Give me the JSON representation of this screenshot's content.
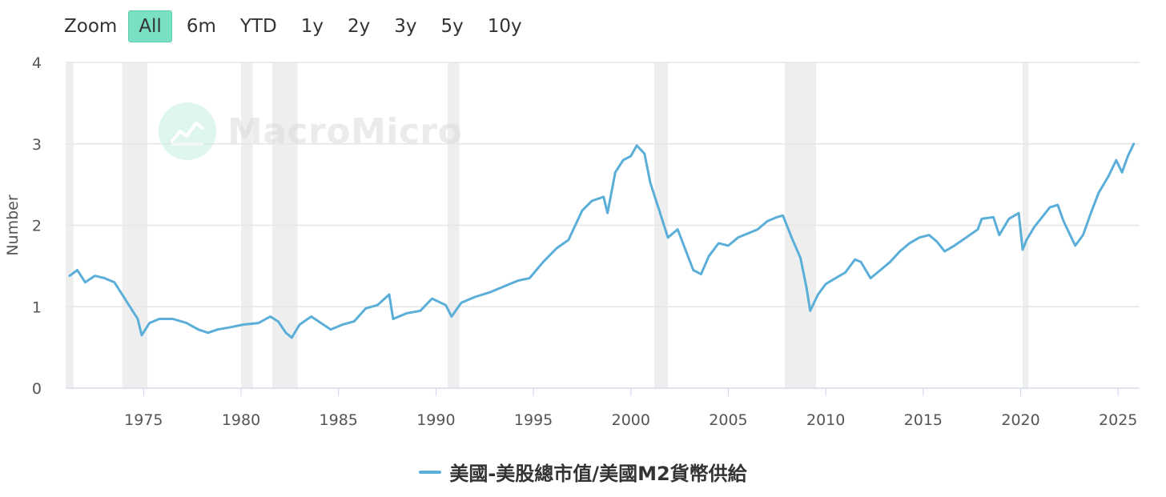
{
  "zoom": {
    "label": "Zoom",
    "options": [
      "All",
      "6m",
      "YTD",
      "1y",
      "2y",
      "3y",
      "5y",
      "10y"
    ],
    "active": "All"
  },
  "watermark": {
    "text": "MacroMicro",
    "icon": "chart-trend-icon"
  },
  "colors": {
    "series": "#5aaed8",
    "recession": "#eeeeee",
    "grid": "#e6e6e6",
    "accent": "#7ae0c3"
  },
  "chart_data": {
    "type": "line",
    "title": "",
    "xlabel": "",
    "ylabel": "Number",
    "xlim": [
      1971.0,
      2026.1
    ],
    "ylim": [
      0,
      4
    ],
    "yticks": [
      0,
      1,
      2,
      3,
      4
    ],
    "xticks": [
      1975,
      1980,
      1985,
      1990,
      1995,
      2000,
      2005,
      2010,
      2015,
      2020,
      2025
    ],
    "grid": true,
    "legend_position": "bottom-center",
    "recessions": [
      [
        1971.0,
        1971.4
      ],
      [
        1973.9,
        1975.2
      ],
      [
        1980.0,
        1980.6
      ],
      [
        1981.6,
        1982.9
      ],
      [
        1990.6,
        1991.2
      ],
      [
        2001.2,
        2001.9
      ],
      [
        2007.9,
        2009.5
      ],
      [
        2020.1,
        2020.4
      ]
    ],
    "series": [
      {
        "name": "美國-美股總市值/美國M2貨幣供給",
        "color": "#5aaed8",
        "x": [
          1971.2,
          1971.6,
          1972.0,
          1972.5,
          1973.0,
          1973.5,
          1973.9,
          1974.3,
          1974.7,
          1974.9,
          1975.3,
          1975.8,
          1976.5,
          1977.2,
          1977.8,
          1978.3,
          1978.8,
          1979.5,
          1980.1,
          1980.9,
          1981.5,
          1981.9,
          1982.3,
          1982.6,
          1983.0,
          1983.6,
          1984.1,
          1984.6,
          1985.2,
          1985.8,
          1986.4,
          1987.0,
          1987.6,
          1987.8,
          1988.5,
          1989.2,
          1989.8,
          1990.5,
          1990.8,
          1991.3,
          1992.0,
          1992.8,
          1993.5,
          1994.2,
          1994.8,
          1995.5,
          1996.2,
          1996.8,
          1997.5,
          1998.0,
          1998.6,
          1998.8,
          1999.2,
          1999.6,
          2000.0,
          2000.3,
          2000.7,
          2001.0,
          2001.5,
          2001.9,
          2002.4,
          2002.8,
          2003.2,
          2003.6,
          2004.0,
          2004.5,
          2005.0,
          2005.5,
          2006.0,
          2006.5,
          2007.0,
          2007.5,
          2007.8,
          2008.3,
          2008.7,
          2009.0,
          2009.2,
          2009.6,
          2010.0,
          2010.5,
          2011.0,
          2011.5,
          2011.8,
          2012.3,
          2012.8,
          2013.3,
          2013.8,
          2014.3,
          2014.8,
          2015.3,
          2015.7,
          2016.1,
          2016.6,
          2017.2,
          2017.8,
          2018.0,
          2018.6,
          2018.9,
          2019.4,
          2019.9,
          2020.1,
          2020.3,
          2020.7,
          2021.1,
          2021.5,
          2021.9,
          2022.2,
          2022.6,
          2022.8,
          2023.2,
          2023.6,
          2024.0,
          2024.5,
          2024.9,
          2025.2,
          2025.5,
          2025.8
        ],
        "y": [
          1.38,
          1.45,
          1.3,
          1.38,
          1.35,
          1.3,
          1.15,
          1.0,
          0.85,
          0.65,
          0.8,
          0.85,
          0.85,
          0.8,
          0.72,
          0.68,
          0.72,
          0.75,
          0.78,
          0.8,
          0.88,
          0.82,
          0.68,
          0.62,
          0.78,
          0.88,
          0.8,
          0.72,
          0.78,
          0.82,
          0.98,
          1.02,
          1.15,
          0.85,
          0.92,
          0.95,
          1.1,
          1.02,
          0.88,
          1.05,
          1.12,
          1.18,
          1.25,
          1.32,
          1.35,
          1.55,
          1.72,
          1.82,
          2.18,
          2.3,
          2.35,
          2.15,
          2.65,
          2.8,
          2.85,
          2.98,
          2.88,
          2.52,
          2.15,
          1.85,
          1.95,
          1.7,
          1.45,
          1.4,
          1.62,
          1.78,
          1.75,
          1.85,
          1.9,
          1.95,
          2.05,
          2.1,
          2.12,
          1.82,
          1.6,
          1.25,
          0.95,
          1.15,
          1.28,
          1.35,
          1.42,
          1.58,
          1.55,
          1.35,
          1.45,
          1.55,
          1.68,
          1.78,
          1.85,
          1.88,
          1.8,
          1.68,
          1.75,
          1.85,
          1.95,
          2.08,
          2.1,
          1.88,
          2.08,
          2.15,
          1.7,
          1.82,
          1.98,
          2.1,
          2.22,
          2.25,
          2.05,
          1.85,
          1.75,
          1.88,
          2.15,
          2.4,
          2.6,
          2.8,
          2.65,
          2.85,
          3.0
        ]
      }
    ]
  }
}
